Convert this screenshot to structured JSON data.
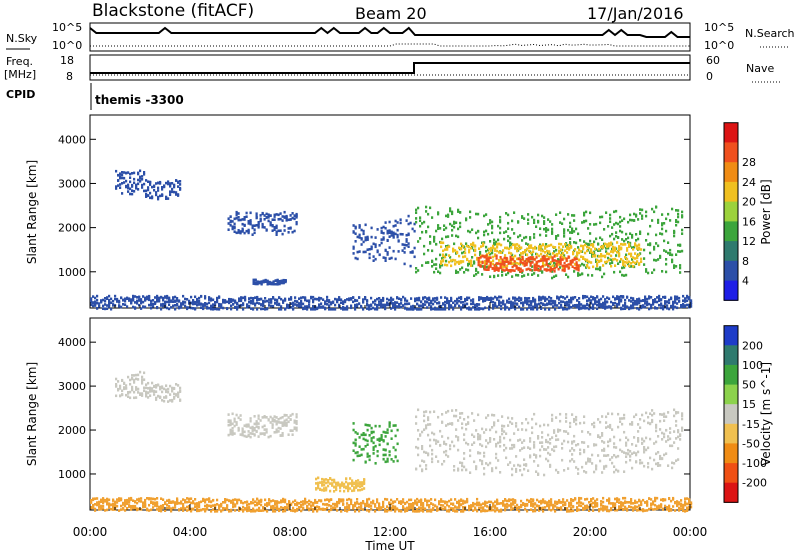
{
  "header": {
    "station": "Blackstone (fitACF)",
    "beam": "Beam 20",
    "date": "17/Jan/2016"
  },
  "status_panel": {
    "nsky_label": "N.Sky",
    "nsearch_label": "N.Search",
    "freq_label_top": "Freq.",
    "freq_label_bottom": "[MHz]",
    "nave_label": "Nave",
    "cpid_label": "CPID",
    "cpid_value": "themis -3300",
    "noise_ticks": [
      "10^5",
      "10^0"
    ],
    "freq_ticks": [
      "18",
      "8"
    ],
    "nave_ticks": [
      "60",
      "0"
    ]
  },
  "chart_data": [
    {
      "type": "heatmap",
      "name": "power",
      "xlabel": "Time UT",
      "ylabel": "Slant Range [km]",
      "x_ticks": [
        "00:00",
        "04:00",
        "08:00",
        "12:00",
        "16:00",
        "20:00",
        "00:00"
      ],
      "y_ticks": [
        1000,
        2000,
        3000,
        4000
      ],
      "ylim": [
        180,
        4550
      ],
      "xlim_hours": [
        0,
        24
      ],
      "colorbar": {
        "label": "Power [dB]",
        "ticks": [
          4,
          8,
          12,
          16,
          20,
          24,
          28
        ],
        "colors": [
          "#1e1ee6",
          "#2c4fa8",
          "#2f7a6e",
          "#3ca53c",
          "#9cd23c",
          "#f0c020",
          "#f08c14",
          "#f0501e",
          "#dc1414"
        ]
      },
      "regions": [
        {
          "t": [
            1.0,
            2.2
          ],
          "r": [
            2800,
            3350
          ],
          "color": "#2c4fa8"
        },
        {
          "t": [
            2.2,
            3.6
          ],
          "r": [
            2700,
            3100
          ],
          "color": "#2c4fa8"
        },
        {
          "t": [
            5.5,
            8.3
          ],
          "r": [
            1900,
            2400
          ],
          "color": "#2c4fa8"
        },
        {
          "t": [
            6.5,
            7.8
          ],
          "r": [
            750,
            850
          ],
          "color": "#2c4fa8"
        },
        {
          "t": [
            10.5,
            12.3
          ],
          "r": [
            1300,
            2200
          ],
          "color": "#2c4fa8"
        },
        {
          "t": [
            12.3,
            13.0
          ],
          "r": [
            1200,
            2400
          ],
          "color": "#2c4fa8"
        },
        {
          "t": [
            13.0,
            23.7
          ],
          "r": [
            1000,
            2500
          ],
          "color": "#3ca53c"
        },
        {
          "t": [
            14.0,
            22.0
          ],
          "r": [
            1150,
            1700
          ],
          "color": "#f0c020"
        },
        {
          "t": [
            15.5,
            19.5
          ],
          "r": [
            1050,
            1400
          ],
          "color": "#f0501e"
        },
        {
          "t": [
            0,
            24
          ],
          "r": [
            180,
            480
          ],
          "color": "#2c4fa8"
        }
      ]
    },
    {
      "type": "heatmap",
      "name": "velocity",
      "xlabel": "Time UT",
      "ylabel": "Slant Range [km]",
      "x_ticks": [
        "00:00",
        "04:00",
        "08:00",
        "12:00",
        "16:00",
        "20:00",
        "00:00"
      ],
      "y_ticks": [
        1000,
        2000,
        3000,
        4000
      ],
      "ylim": [
        180,
        4550
      ],
      "xlim_hours": [
        0,
        24
      ],
      "colorbar": {
        "label": "Velocity [m s^-1]",
        "ticks": [
          200,
          100,
          50,
          15,
          -15,
          -50,
          -100,
          -200
        ],
        "colors": [
          "#1e3cc8",
          "#2f7a6e",
          "#3ca53c",
          "#8cd24c",
          "#c8c8c0",
          "#f0c050",
          "#f08c14",
          "#f05014",
          "#dc1414"
        ]
      },
      "regions": [
        {
          "t": [
            1.0,
            2.2
          ],
          "r": [
            2800,
            3350
          ],
          "color": "#c8c8c0"
        },
        {
          "t": [
            2.2,
            3.6
          ],
          "r": [
            2700,
            3100
          ],
          "color": "#c8c8c0"
        },
        {
          "t": [
            5.5,
            8.3
          ],
          "r": [
            1900,
            2400
          ],
          "color": "#c8c8c0"
        },
        {
          "t": [
            9.0,
            11.0
          ],
          "r": [
            650,
            950
          ],
          "color": "#f0c050"
        },
        {
          "t": [
            10.5,
            12.3
          ],
          "r": [
            1300,
            2200
          ],
          "color": "#3ca53c"
        },
        {
          "t": [
            13.0,
            23.7
          ],
          "r": [
            1100,
            2500
          ],
          "color": "#c8c8c0"
        },
        {
          "t": [
            0,
            24
          ],
          "r": [
            180,
            480
          ],
          "color": "#f0a030"
        }
      ]
    }
  ]
}
